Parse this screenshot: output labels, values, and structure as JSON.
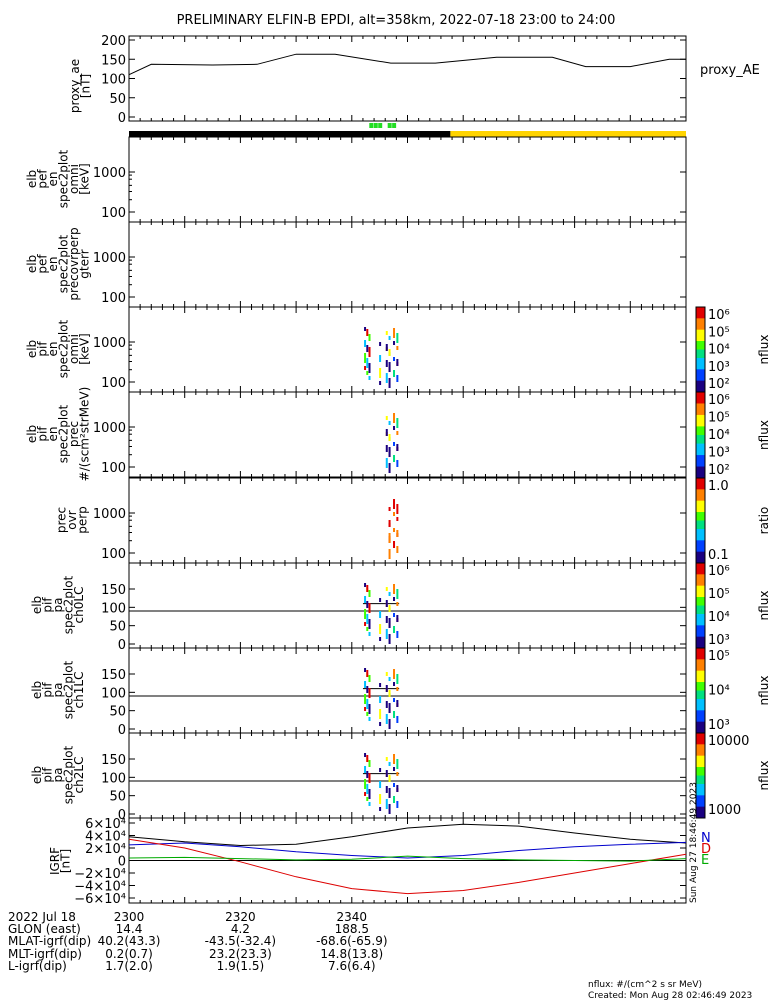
{
  "title": "PRELIMINARY ELFIN-B EPDI, alt=358km, 2022-07-18 23:00 to 24:00",
  "chart_data": {
    "type": "line",
    "xlim": [
      2300,
      2400
    ],
    "x_tick_labels": [
      "2300",
      "2320",
      "2340"
    ],
    "proxy_ae": {
      "ylabel": [
        "proxy_ae",
        "[nT]"
      ],
      "yticks": [
        "0",
        "50",
        "100",
        "150",
        "200"
      ],
      "ylim": [
        0,
        200
      ],
      "legend": "proxy_AE",
      "x": [
        2300,
        2304,
        2315,
        2323,
        2330,
        2337,
        2347,
        2355,
        2366,
        2376,
        2382,
        2390,
        2397,
        2400
      ],
      "y": [
        110,
        137,
        135,
        137,
        163,
        163,
        140,
        140,
        155,
        155,
        131,
        131,
        150,
        150
      ]
    },
    "status_bar": {
      "black_until": 2357.7,
      "yellow_from": 2357.7,
      "green_marks": [
        2343.5,
        2344.3,
        2345.1,
        2346.8,
        2347.6
      ]
    },
    "spec_panels": [
      {
        "ylabel": [
          "elb",
          "pef",
          "en",
          "spec2plot",
          "omni",
          "[keV]"
        ],
        "yticks": [
          "100",
          "1000"
        ]
      },
      {
        "ylabel": [
          "elb",
          "pef",
          "en",
          "spec2plot",
          "precovrperp",
          "gterr"
        ],
        "yticks": [
          "100",
          "1000"
        ]
      },
      {
        "ylabel": [
          "elb",
          "pif",
          "en",
          "spec2plot",
          "omni",
          "[keV]"
        ],
        "yticks": [
          "100",
          "1000"
        ]
      },
      {
        "ylabel": [
          "elb",
          "pif",
          "en",
          "spec2plot",
          "prec",
          "#/(scm²strMeV)"
        ],
        "yticks": [
          "100",
          "1000"
        ]
      },
      {
        "ylabel": [
          "prec",
          "ovr",
          "perp"
        ],
        "yticks": [
          "100",
          "1000"
        ]
      },
      {
        "ylabel": [
          "elb",
          "pif",
          "pa",
          "spec2plot",
          "ch0LC"
        ],
        "yticks": [
          "0",
          "50",
          "100",
          "150"
        ]
      },
      {
        "ylabel": [
          "elb",
          "pif",
          "pa",
          "spec2plot",
          "ch1LC"
        ],
        "yticks": [
          "0",
          "50",
          "100",
          "150"
        ]
      },
      {
        "ylabel": [
          "elb",
          "pif",
          "pa",
          "spec2plot",
          "ch2LC"
        ],
        "yticks": [
          "0",
          "50",
          "100",
          "150"
        ]
      }
    ],
    "colorbars": [
      {
        "label": "nflux",
        "ticks": [
          "10²",
          "10³",
          "10⁴",
          "10⁵",
          "10⁶"
        ]
      },
      {
        "label": "nflux",
        "ticks": [
          "10²",
          "10³",
          "10⁴",
          "10⁵",
          "10⁶"
        ]
      },
      {
        "label": "ratio",
        "ticks": [
          "0.1",
          "1.0"
        ]
      },
      {
        "label": "nflux",
        "ticks": [
          "10³",
          "10⁴",
          "10⁵",
          "10⁶"
        ]
      },
      {
        "label": "nflux",
        "ticks": [
          "10³",
          "10⁴",
          "10⁵"
        ]
      },
      {
        "label": "nflux",
        "ticks": [
          "1000",
          "10000"
        ]
      }
    ],
    "igrf": {
      "ylabel": [
        "IGRF",
        "[nT]"
      ],
      "yticks": [
        "−6×10⁴",
        "−4×10⁴",
        "−2×10⁴",
        "0",
        "2×10⁴",
        "4×10⁴",
        "6×10⁴"
      ],
      "ylim": [
        -60000,
        60000
      ],
      "legend": [
        "N",
        "D",
        "E"
      ],
      "legend_colors": [
        "#0000cc",
        "#dd0000",
        "#00aa00"
      ],
      "series": [
        {
          "color": "#000000",
          "x": [
            2300,
            2310,
            2320,
            2330,
            2340,
            2350,
            2360,
            2370,
            2380,
            2390,
            2400
          ],
          "y": [
            38000,
            30000,
            24000,
            26000,
            38000,
            52000,
            58000,
            55000,
            44000,
            34000,
            28000
          ]
        },
        {
          "color": "#0000cc",
          "x": [
            2300,
            2310,
            2320,
            2330,
            2340,
            2350,
            2360,
            2370,
            2380,
            2390,
            2400
          ],
          "y": [
            25000,
            28000,
            22000,
            14000,
            8000,
            4000,
            8000,
            16000,
            22000,
            26000,
            29000
          ]
        },
        {
          "color": "#dd0000",
          "x": [
            2300,
            2310,
            2320,
            2330,
            2340,
            2350,
            2360,
            2370,
            2380,
            2390,
            2400
          ],
          "y": [
            34000,
            20000,
            -2000,
            -26000,
            -45000,
            -53000,
            -48000,
            -35000,
            -20000,
            -5000,
            10000
          ]
        },
        {
          "color": "#00aa00",
          "x": [
            2300,
            2310,
            2320,
            2330,
            2340,
            2350,
            2360,
            2370,
            2380,
            2390,
            2400
          ],
          "y": [
            4000,
            5000,
            3000,
            1000,
            2000,
            7000,
            3000,
            1000,
            0,
            -1000,
            3000
          ]
        }
      ]
    },
    "axis_labels": [
      "2022 Jul 18",
      "GLON (east)",
      "MLAT-igrf(dip)",
      "MLT-igrf(dip)",
      "L-igrf(dip)"
    ],
    "axis_rows": [
      {
        "values": [
          "2300",
          "2320",
          "2340"
        ]
      },
      {
        "values": [
          "14.4",
          "4.2",
          "188.5"
        ]
      },
      {
        "values": [
          "40.2(43.3)",
          "-43.5(-32.4)",
          "-68.6(-65.9)"
        ]
      },
      {
        "values": [
          "0.2(0.7)",
          "23.2(23.3)",
          "14.8(13.8)"
        ]
      },
      {
        "values": [
          "1.7(2.0)",
          "1.9(1.5)",
          "7.6(6.4)"
        ]
      }
    ],
    "footer": [
      "nflux: #/(cm^2 s sr MeV)",
      "Created: Mon Aug 28 02:46:49 2023"
    ],
    "side_stamp": "Sun Aug 27 18:46:49 2023"
  }
}
